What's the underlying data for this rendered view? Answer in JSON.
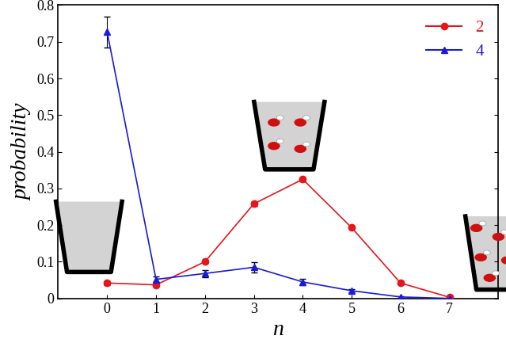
{
  "chart_data": {
    "type": "line",
    "x_label": "n",
    "y_label": "probability",
    "x": [
      0,
      1,
      2,
      3,
      4,
      5,
      6,
      7
    ],
    "series": [
      {
        "name": "2",
        "color": "#e8141b",
        "marker": "o",
        "line_style": "solid",
        "values": [
          0.042,
          0.037,
          0.1,
          0.258,
          0.325,
          0.193,
          0.042,
          0.003
        ],
        "error": [
          0.005,
          0.003,
          0.004,
          0.005,
          0.005,
          0.004,
          0.003,
          0.001
        ]
      },
      {
        "name": "4",
        "color": "#1a1adb",
        "marker": "^",
        "line_style": "solid",
        "values": [
          0.727,
          0.052,
          0.068,
          0.085,
          0.045,
          0.021,
          0.004,
          0.0
        ],
        "error": [
          0.042,
          0.007,
          0.01,
          0.014,
          0.009,
          0.004,
          0.002,
          0.001
        ]
      }
    ],
    "xlim": [
      -1,
      8
    ],
    "xticks": [
      0,
      1,
      2,
      3,
      4,
      5,
      6,
      7
    ],
    "ylim": [
      0,
      0.8
    ],
    "yticks": [
      0,
      0.1,
      0.2,
      0.3,
      0.4,
      0.5,
      0.6,
      0.7,
      0.8
    ],
    "legend": "upper right",
    "grid": false
  }
}
